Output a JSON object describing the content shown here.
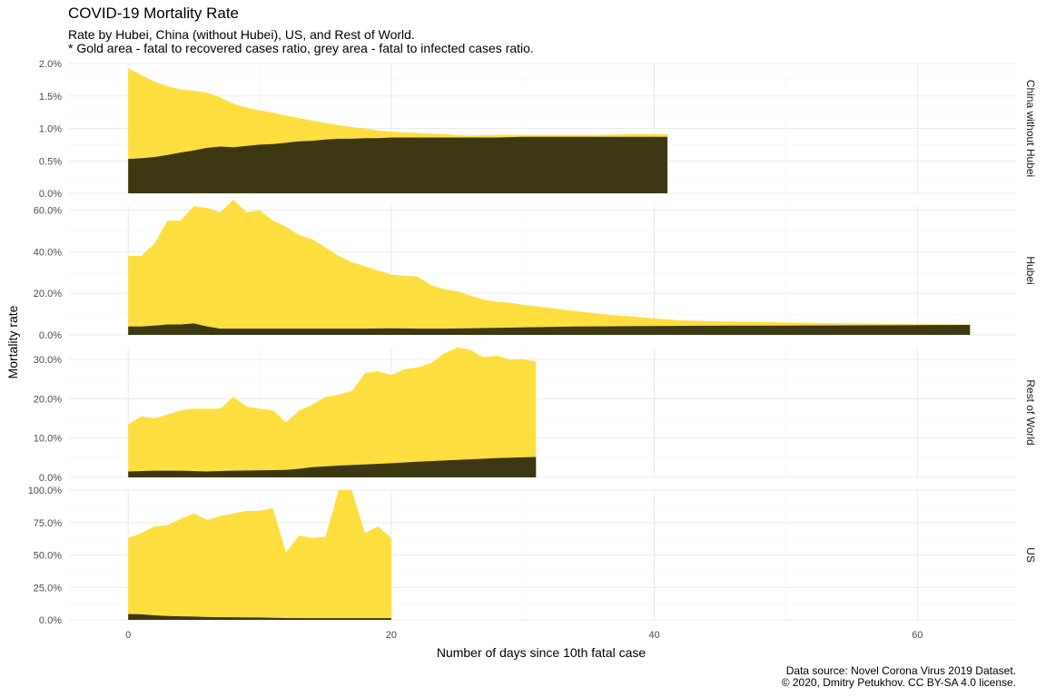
{
  "title": "COVID-19 Mortality Rate",
  "subtitle": "Rate by Hubei, China (without Hubei), US, and Rest of World.\n* Gold area - fatal to recovered cases ratio, grey area - fatal to infected cases ratio.",
  "caption": "Data source: Novel Corona Virus 2019 Dataset.\n© 2020, Dmitry Petukhov. CC BY-SA 4.0 license.",
  "colors": {
    "gold": "#FFDB2A",
    "grey": "#3D3812",
    "grid_major": "#EBEBEB",
    "grid_minor": "#F3F3F3",
    "tick_text": "#4D4D4D"
  },
  "chart_data": {
    "type": "area",
    "xlabel": "Number of days since 10th fatal case",
    "ylabel": "Mortality rate",
    "xlim": [
      -4.5,
      67.5
    ],
    "x_ticks": [
      0,
      20,
      40,
      60
    ],
    "x_tick_labels": [
      "0",
      "20",
      "40",
      "60"
    ],
    "grid": true,
    "facets": [
      {
        "name": "China without Hubei",
        "ylim": [
          0,
          2.0
        ],
        "y_ticks": [
          0,
          0.5,
          1.0,
          1.5,
          2.0
        ],
        "y_tick_labels": [
          "0.0%",
          "0.5%",
          "1.0%",
          "1.5%",
          "2.0%"
        ],
        "fatal_to_recovered": [
          [
            0,
            1.93
          ],
          [
            1,
            1.82
          ],
          [
            2,
            1.72
          ],
          [
            3,
            1.65
          ],
          [
            4,
            1.6
          ],
          [
            5,
            1.58
          ],
          [
            6,
            1.55
          ],
          [
            7,
            1.48
          ],
          [
            8,
            1.38
          ],
          [
            9,
            1.32
          ],
          [
            10,
            1.28
          ],
          [
            11,
            1.24
          ],
          [
            12,
            1.2
          ],
          [
            13,
            1.16
          ],
          [
            14,
            1.12
          ],
          [
            15,
            1.08
          ],
          [
            16,
            1.05
          ],
          [
            17,
            1.02
          ],
          [
            18,
            1.0
          ],
          [
            19,
            0.97
          ],
          [
            20,
            0.95
          ],
          [
            22,
            0.93
          ],
          [
            24,
            0.91
          ],
          [
            26,
            0.89
          ],
          [
            28,
            0.9
          ],
          [
            30,
            0.9
          ],
          [
            32,
            0.9
          ],
          [
            34,
            0.9
          ],
          [
            36,
            0.9
          ],
          [
            38,
            0.91
          ],
          [
            40,
            0.91
          ],
          [
            41,
            0.91
          ]
        ],
        "fatal_to_infected": [
          [
            0,
            0.53
          ],
          [
            1,
            0.54
          ],
          [
            2,
            0.56
          ],
          [
            3,
            0.59
          ],
          [
            4,
            0.63
          ],
          [
            5,
            0.66
          ],
          [
            6,
            0.7
          ],
          [
            7,
            0.72
          ],
          [
            8,
            0.71
          ],
          [
            9,
            0.73
          ],
          [
            10,
            0.75
          ],
          [
            11,
            0.76
          ],
          [
            12,
            0.78
          ],
          [
            13,
            0.8
          ],
          [
            14,
            0.81
          ],
          [
            15,
            0.83
          ],
          [
            16,
            0.84
          ],
          [
            17,
            0.84
          ],
          [
            18,
            0.85
          ],
          [
            19,
            0.85
          ],
          [
            20,
            0.86
          ],
          [
            22,
            0.86
          ],
          [
            24,
            0.86
          ],
          [
            26,
            0.86
          ],
          [
            28,
            0.86
          ],
          [
            30,
            0.87
          ],
          [
            32,
            0.87
          ],
          [
            34,
            0.87
          ],
          [
            36,
            0.87
          ],
          [
            38,
            0.87
          ],
          [
            40,
            0.87
          ],
          [
            41,
            0.87
          ]
        ]
      },
      {
        "name": "Hubei",
        "ylim": [
          0,
          62.0
        ],
        "y_ticks": [
          0,
          20,
          40,
          60
        ],
        "y_tick_labels": [
          "0.0%",
          "20.0%",
          "40.0%",
          "60.0%"
        ],
        "fatal_to_recovered": [
          [
            0,
            38.0
          ],
          [
            1,
            38.0
          ],
          [
            2,
            44.0
          ],
          [
            3,
            55.0
          ],
          [
            4,
            55.0
          ],
          [
            5,
            62.0
          ],
          [
            6,
            61.0
          ],
          [
            7,
            59.0
          ],
          [
            8,
            65.0
          ],
          [
            9,
            59.0
          ],
          [
            10,
            60.0
          ],
          [
            11,
            55.0
          ],
          [
            12,
            52.0
          ],
          [
            13,
            48.0
          ],
          [
            14,
            46.0
          ],
          [
            15,
            42.0
          ],
          [
            16,
            38.0
          ],
          [
            17,
            35.0
          ],
          [
            18,
            33.0
          ],
          [
            19,
            31.0
          ],
          [
            20,
            29.0
          ],
          [
            21,
            28.5
          ],
          [
            22,
            28.0
          ],
          [
            23,
            24.0
          ],
          [
            24,
            22.0
          ],
          [
            25,
            21.0
          ],
          [
            26,
            19.0
          ],
          [
            27,
            17.0
          ],
          [
            28,
            16.0
          ],
          [
            29,
            15.5
          ],
          [
            30,
            14.5
          ],
          [
            32,
            13.0
          ],
          [
            34,
            11.5
          ],
          [
            36,
            10.0
          ],
          [
            38,
            9.0
          ],
          [
            40,
            8.0
          ],
          [
            42,
            7.0
          ],
          [
            45,
            6.5
          ],
          [
            50,
            6.0
          ],
          [
            55,
            5.5
          ],
          [
            60,
            5.2
          ],
          [
            64,
            5.0
          ]
        ],
        "fatal_to_infected": [
          [
            0,
            4.0
          ],
          [
            1,
            4.0
          ],
          [
            2,
            4.5
          ],
          [
            3,
            5.0
          ],
          [
            4,
            5.0
          ],
          [
            5,
            5.5
          ],
          [
            6,
            4.0
          ],
          [
            7,
            3.0
          ],
          [
            10,
            3.0
          ],
          [
            12,
            3.0
          ],
          [
            14,
            3.0
          ],
          [
            16,
            3.0
          ],
          [
            18,
            3.0
          ],
          [
            20,
            3.2
          ],
          [
            22,
            3.0
          ],
          [
            24,
            3.0
          ],
          [
            26,
            3.2
          ],
          [
            28,
            3.4
          ],
          [
            30,
            3.6
          ],
          [
            32,
            3.8
          ],
          [
            34,
            4.0
          ],
          [
            36,
            4.1
          ],
          [
            38,
            4.2
          ],
          [
            40,
            4.3
          ],
          [
            45,
            4.4
          ],
          [
            50,
            4.5
          ],
          [
            55,
            4.6
          ],
          [
            60,
            4.7
          ],
          [
            64,
            4.8
          ]
        ]
      },
      {
        "name": "Rest of World",
        "ylim": [
          0,
          33.0
        ],
        "y_ticks": [
          0,
          10,
          20,
          30
        ],
        "y_tick_labels": [
          "0.0%",
          "10.0%",
          "20.0%",
          "30.0%"
        ],
        "fatal_to_recovered": [
          [
            0,
            13.5
          ],
          [
            1,
            15.5
          ],
          [
            2,
            15.0
          ],
          [
            3,
            16.0
          ],
          [
            4,
            17.0
          ],
          [
            5,
            17.5
          ],
          [
            6,
            17.5
          ],
          [
            7,
            17.5
          ],
          [
            8,
            20.5
          ],
          [
            9,
            18.0
          ],
          [
            10,
            17.5
          ],
          [
            11,
            17.0
          ],
          [
            12,
            14.0
          ],
          [
            13,
            17.0
          ],
          [
            14,
            18.5
          ],
          [
            15,
            20.5
          ],
          [
            16,
            21.0
          ],
          [
            17,
            22.0
          ],
          [
            18,
            26.5
          ],
          [
            19,
            27.0
          ],
          [
            20,
            26.0
          ],
          [
            21,
            27.5
          ],
          [
            22,
            28.0
          ],
          [
            23,
            29.0
          ],
          [
            24,
            31.5
          ],
          [
            25,
            33.0
          ],
          [
            26,
            32.5
          ],
          [
            27,
            30.5
          ],
          [
            28,
            31.0
          ],
          [
            29,
            30.0
          ],
          [
            30,
            30.0
          ],
          [
            31,
            29.5
          ]
        ],
        "fatal_to_infected": [
          [
            0,
            1.5
          ],
          [
            2,
            1.7
          ],
          [
            4,
            1.7
          ],
          [
            6,
            1.5
          ],
          [
            8,
            1.7
          ],
          [
            10,
            1.8
          ],
          [
            12,
            1.9
          ],
          [
            13,
            2.2
          ],
          [
            14,
            2.6
          ],
          [
            16,
            3.0
          ],
          [
            18,
            3.3
          ],
          [
            20,
            3.6
          ],
          [
            22,
            4.0
          ],
          [
            24,
            4.3
          ],
          [
            26,
            4.6
          ],
          [
            28,
            4.9
          ],
          [
            30,
            5.1
          ],
          [
            31,
            5.2
          ]
        ]
      },
      {
        "name": "US",
        "ylim": [
          0,
          100.0
        ],
        "y_ticks": [
          0,
          25,
          50,
          75,
          100
        ],
        "y_tick_labels": [
          "0.0%",
          "25.0%",
          "50.0%",
          "75.0%",
          "100.0%"
        ],
        "fatal_to_recovered": [
          [
            0,
            63.0
          ],
          [
            1,
            67.0
          ],
          [
            2,
            72.0
          ],
          [
            3,
            73.0
          ],
          [
            4,
            78.0
          ],
          [
            5,
            82.0
          ],
          [
            6,
            77.0
          ],
          [
            7,
            80.0
          ],
          [
            8,
            82.0
          ],
          [
            9,
            84.0
          ],
          [
            10,
            84.0
          ],
          [
            11,
            86.0
          ],
          [
            12,
            52.0
          ],
          [
            13,
            65.0
          ],
          [
            14,
            63.0
          ],
          [
            15,
            64.0
          ],
          [
            16,
            100.0
          ],
          [
            17,
            100.0
          ],
          [
            18,
            67.0
          ],
          [
            19,
            72.0
          ],
          [
            20,
            63.0
          ]
        ],
        "fatal_to_infected": [
          [
            0,
            4.5
          ],
          [
            1,
            4.3
          ],
          [
            2,
            3.5
          ],
          [
            3,
            3.0
          ],
          [
            4,
            2.7
          ],
          [
            5,
            2.5
          ],
          [
            6,
            2.2
          ],
          [
            7,
            2.0
          ],
          [
            8,
            2.0
          ],
          [
            9,
            1.8
          ],
          [
            10,
            1.8
          ],
          [
            11,
            1.6
          ],
          [
            12,
            1.4
          ],
          [
            14,
            1.3
          ],
          [
            16,
            1.3
          ],
          [
            18,
            1.3
          ],
          [
            20,
            1.3
          ]
        ]
      }
    ]
  }
}
